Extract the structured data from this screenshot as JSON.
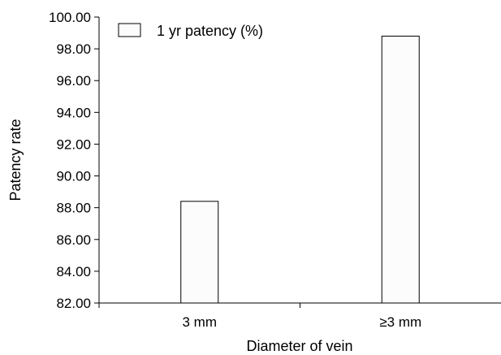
{
  "chart_data": {
    "type": "bar",
    "categories": [
      "3 mm",
      "≥3 mm"
    ],
    "series": [
      {
        "name": "1 yr patency (%)",
        "values": [
          88.4,
          98.8
        ]
      }
    ],
    "xlabel": "Diameter of vein",
    "ylabel": "Patency rate",
    "ylim": [
      82,
      100
    ],
    "yticks": [
      "82.00",
      "84.00",
      "86.00",
      "88.00",
      "90.00",
      "92.00",
      "94.00",
      "96.00",
      "98.00",
      "100.00"
    ],
    "grid": false,
    "legend": "top-left",
    "bar_fill": "#fcfcfc",
    "bar_stroke": "#000000"
  }
}
